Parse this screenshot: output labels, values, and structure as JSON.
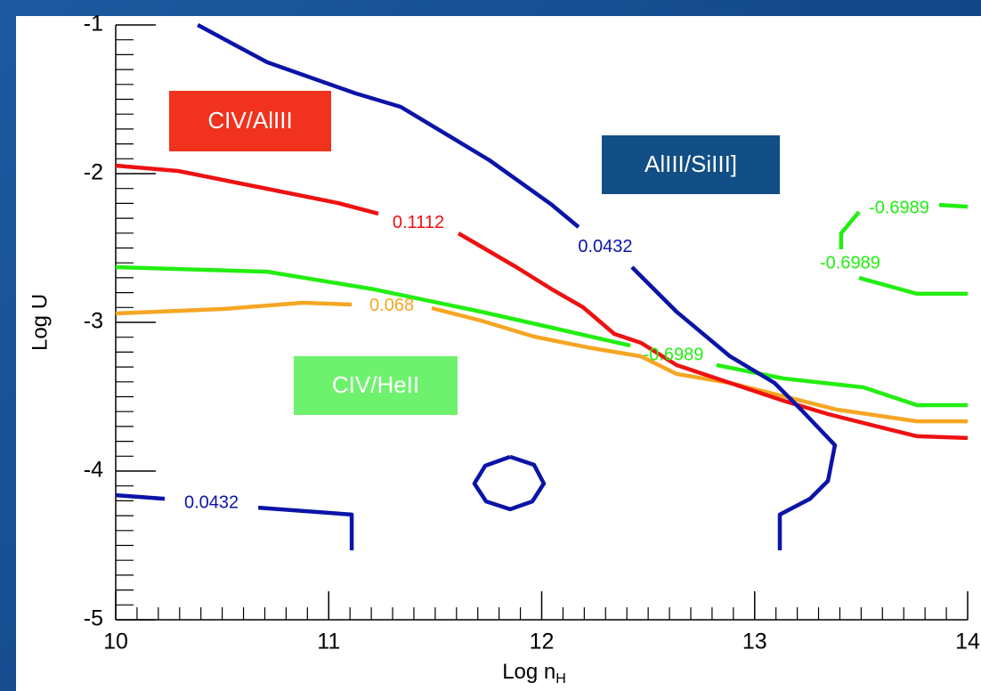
{
  "chart_data": {
    "type": "contour",
    "xlabel": "Log n",
    "xlabel_sub": "H",
    "ylabel": "Log U",
    "xlim": [
      10,
      14
    ],
    "ylim": [
      -5,
      -1
    ],
    "xticks": [
      10,
      11,
      12,
      13,
      14
    ],
    "yticks": [
      -5,
      -4,
      -3,
      -2,
      -1
    ],
    "regions": [
      {
        "text": "CIV/AlIII",
        "color": "#f0321e"
      },
      {
        "text": "AlIII/SiIII]",
        "color": "#114f86"
      },
      {
        "text": "CIV/HeII",
        "color": "#6ef26e"
      }
    ],
    "series": [
      {
        "label": "0.0432",
        "color": "#0a14a8",
        "x": [
          10.385,
          10.711,
          11.128,
          11.338,
          11.755,
          12.048,
          12.173,
          null,
          12.424,
          12.633,
          12.884,
          13.093,
          13.218,
          13.377,
          13.344,
          13.26,
          13.118,
          13.118
        ],
        "values": [
          -1,
          -1.251,
          -1.461,
          -1.551,
          -1.91,
          -2.21,
          -2.359,
          null,
          -2.629,
          -2.928,
          -3.228,
          -3.407,
          -3.587,
          -3.826,
          -4.066,
          -4.186,
          -4.293,
          -4.533
        ]
      },
      {
        "label": "0.0432",
        "color": "#0a14a8",
        "x": [
          10,
          10.23,
          null,
          10.669,
          11.108,
          11.108
        ],
        "values": [
          -4.162,
          -4.186,
          null,
          -4.246,
          -4.293,
          -4.533
        ]
      },
      {
        "color": "#0a14a8",
        "x": [
          11.852,
          11.964,
          12.01,
          11.956,
          11.852,
          11.739,
          11.684,
          11.735,
          11.852
        ],
        "values": [
          -3.904,
          -3.958,
          -4.084,
          -4.204,
          -4.257,
          -4.204,
          -4.084,
          -3.964,
          -3.904
        ]
      },
      {
        "label": "0.1112",
        "color": "#ee1111",
        "x": [
          10,
          10.293,
          10.669,
          11.045,
          11.233,
          null,
          11.609,
          11.881,
          12.048,
          12.194,
          12.341,
          12.466,
          12.633,
          12.884,
          13.135,
          13.344,
          13.595,
          13.762,
          14
        ],
        "values": [
          -1.946,
          -1.982,
          -2.09,
          -2.198,
          -2.269,
          null,
          -2.401,
          -2.629,
          -2.778,
          -2.898,
          -3.078,
          -3.138,
          -3.287,
          -3.407,
          -3.527,
          -3.617,
          -3.707,
          -3.766,
          -3.778
        ]
      },
      {
        "label": "0.068",
        "color": "#f5a623",
        "x": [
          10,
          10.502,
          10.878,
          11.108,
          null,
          11.484,
          11.714,
          11.964,
          12.215,
          12.466,
          12.633,
          12.884,
          13.135,
          13.386,
          13.762,
          14
        ],
        "values": [
          -2.94,
          -2.91,
          -2.868,
          -2.88,
          null,
          -2.904,
          -2.988,
          -3.096,
          -3.168,
          -3.228,
          -3.347,
          -3.407,
          -3.497,
          -3.587,
          -3.665,
          -3.665
        ]
      },
      {
        "label": "-0.6989",
        "color": "#22ee11",
        "x": [
          10,
          10.711,
          11.212,
          11.714,
          12.048,
          12.416,
          null,
          12.821,
          13.135,
          13.511,
          13.762,
          14
        ],
        "values": [
          -2.629,
          -2.659,
          -2.778,
          -2.928,
          -3.036,
          -3.156,
          null,
          -3.287,
          -3.377,
          -3.437,
          -3.557,
          -3.557
        ]
      },
      {
        "label": "-0.6989",
        "color": "#22ee11",
        "x": [
          14,
          13.866,
          null,
          13.49,
          13.406,
          13.406,
          null,
          13.49,
          13.762,
          14
        ],
        "values": [
          -2.222,
          -2.21,
          null,
          -2.257,
          -2.401,
          -2.509,
          null,
          -2.701,
          -2.808,
          -2.808
        ]
      }
    ]
  }
}
